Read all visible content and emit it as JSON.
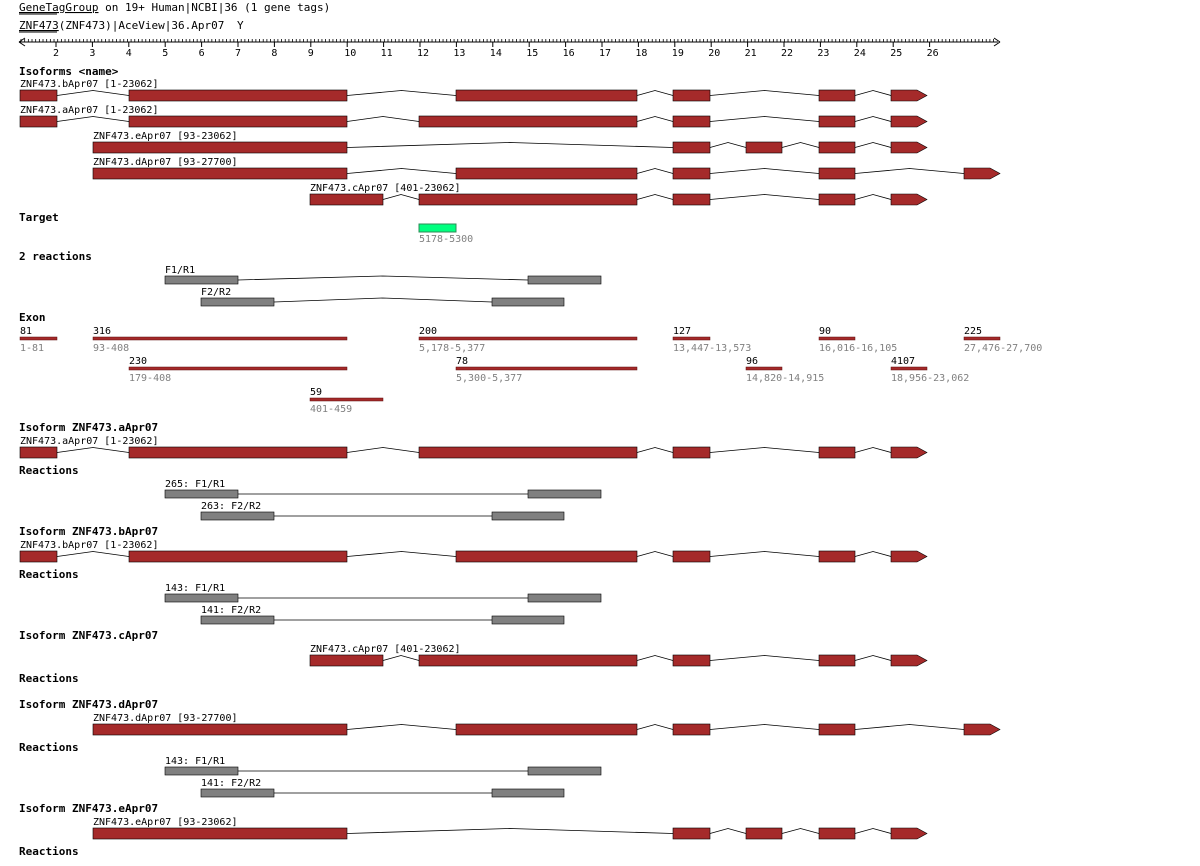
{
  "header": {
    "link1": "GeneTagGroup",
    "rest1": " on 19+ Human|NCBI|36 (1 gene tags)",
    "link2": "ZNF473",
    "rest2": "(ZNF473)|AceView|36.Apr07",
    "menu_glyph": "Y"
  },
  "colors": {
    "exon": "#a52a2a",
    "bar": "#808080",
    "target": "#00ff7f",
    "line": "#000000"
  },
  "ruler": {
    "ticks": [
      "2",
      "3",
      "4",
      "5",
      "6",
      "7",
      "8",
      "9",
      "10",
      "11",
      "12",
      "13",
      "14",
      "15",
      "16",
      "17",
      "18",
      "19",
      "20",
      "21",
      "22",
      "23",
      "24",
      "25",
      "26"
    ]
  },
  "sections": {
    "isoforms": "Isoforms <name>",
    "target": "Target",
    "reactions": "2 reactions",
    "exon": "Exon",
    "iso_a": "Isoform ZNF473.aApr07",
    "iso_b": "Isoform ZNF473.bApr07",
    "iso_c": "Isoform ZNF473.cApr07",
    "iso_d": "Isoform ZNF473.dApr07",
    "iso_e": "Isoform ZNF473.eApr07",
    "reactions_label": "Reactions"
  },
  "isoforms": [
    {
      "label": "ZNF473.bApr07 [1-23062]"
    },
    {
      "label": "ZNF473.aApr07 [1-23062]"
    },
    {
      "label": "ZNF473.eApr07 [93-23062]"
    },
    {
      "label": "ZNF473.dApr07 [93-27700]"
    },
    {
      "label": "ZNF473.cApr07 [401-23062]"
    }
  ],
  "target": {
    "label": "5178-5300"
  },
  "primers": [
    {
      "label": "F1/R1"
    },
    {
      "label": "F2/R2"
    }
  ],
  "exons": [
    {
      "top": "81",
      "bottom": "1-81"
    },
    {
      "top": "316",
      "bottom": "93-408"
    },
    {
      "top": "200",
      "bottom": "5,178-5,377"
    },
    {
      "top": "127",
      "bottom": "13,447-13,573"
    },
    {
      "top": "90",
      "bottom": "16,016-16,105"
    },
    {
      "top": "225",
      "bottom": "27,476-27,700"
    },
    {
      "top": "230",
      "bottom": "179-408"
    },
    {
      "top": "78",
      "bottom": "5,300-5,377"
    },
    {
      "top": "96",
      "bottom": "14,820-14,915"
    },
    {
      "top": "4107",
      "bottom": "18,956-23,062"
    },
    {
      "top": "59",
      "bottom": "401-459"
    }
  ],
  "isoform_blocks": [
    {
      "label": "ZNF473.aApr07 [1-23062]",
      "reactions": [
        "265: F1/R1",
        "263: F2/R2"
      ]
    },
    {
      "label": "ZNF473.bApr07 [1-23062]",
      "reactions": [
        "143: F1/R1",
        "141: F2/R2"
      ]
    },
    {
      "label": "ZNF473.cApr07 [401-23062]",
      "reactions": []
    },
    {
      "label": "ZNF473.dApr07 [93-27700]",
      "reactions": [
        "143: F1/R1",
        "141: F2/R2"
      ]
    },
    {
      "label": "ZNF473.eApr07 [93-23062]",
      "reactions": []
    }
  ]
}
